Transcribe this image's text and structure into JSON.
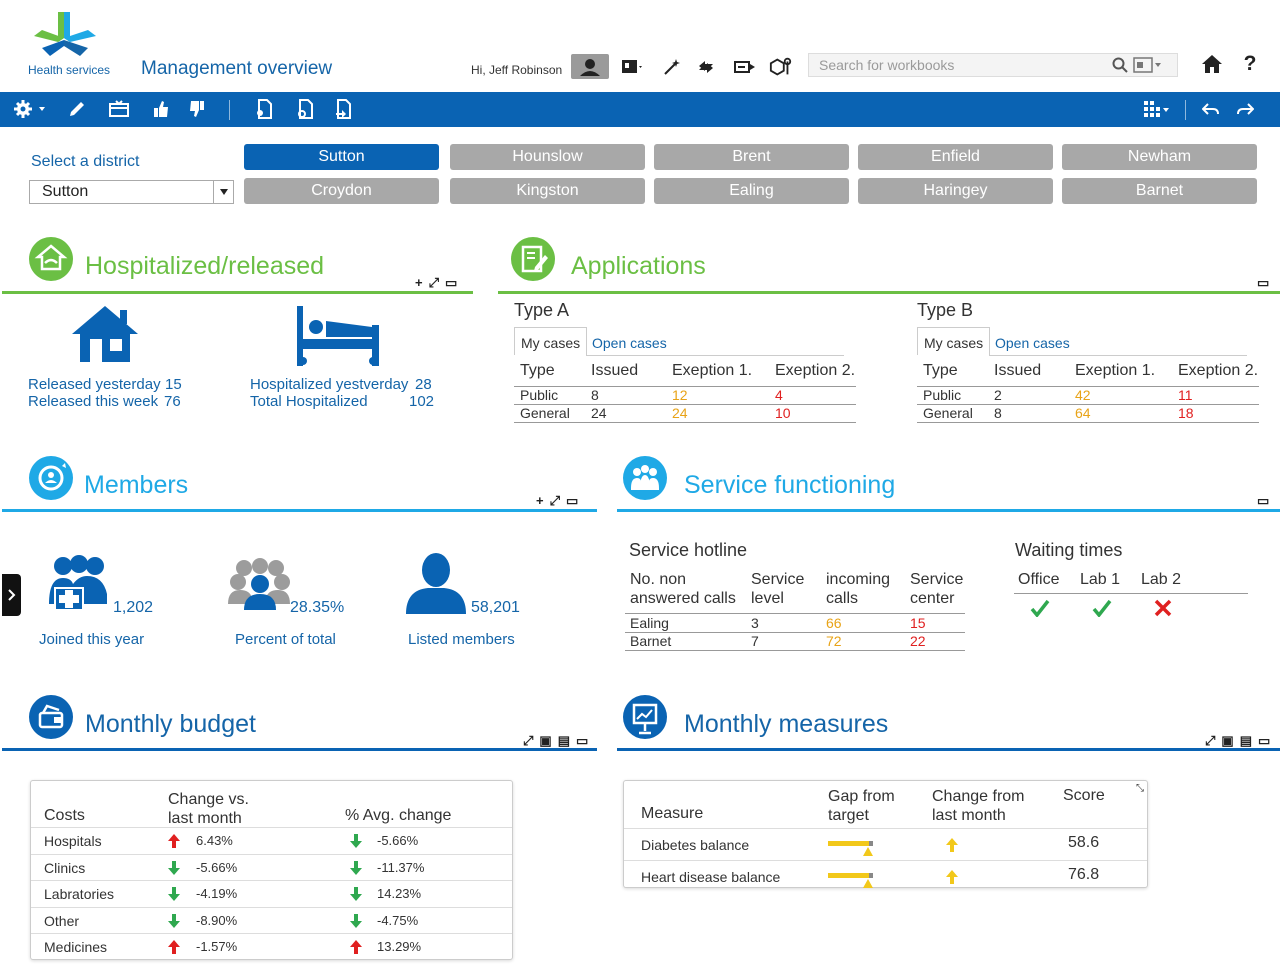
{
  "header": {
    "logo_text": "Health services",
    "app_title": "Management overview",
    "greeting": "Hi, Jeff Robinson",
    "search_placeholder": "Search for workbooks"
  },
  "district": {
    "label": "Select a district",
    "selected": "Sutton",
    "buttons": [
      "Sutton",
      "Hounslow",
      "Brent",
      "Enfield",
      "Newham",
      "Croydon",
      "Kingston",
      "Ealing",
      "Haringey",
      "Barnet"
    ]
  },
  "hospitalized": {
    "title": "Hospitalized/released",
    "released_yesterday_label": "Released yesterday",
    "released_yesterday_value": "15",
    "released_week_label": "Released this week",
    "released_week_value": "76",
    "hosp_yesterday_label": "Hospitalized yestverday",
    "hosp_yesterday_value": "28",
    "total_hosp_label": "Total Hospitalized",
    "total_hosp_value": "102"
  },
  "applications": {
    "title": "Applications",
    "blocks": [
      {
        "name": "Type A",
        "tab_active": "My cases",
        "tab_other": "Open cases",
        "headers": [
          "Type",
          "Issued",
          "Exeption 1.",
          "Exeption 2."
        ],
        "rows": [
          [
            "Public",
            "8",
            "12",
            "4"
          ],
          [
            "General",
            "24",
            "24",
            "10"
          ]
        ]
      },
      {
        "name": "Type B",
        "tab_active": "My cases",
        "tab_other": "Open cases",
        "headers": [
          "Type",
          "Issued",
          "Exeption 1.",
          "Exeption 2."
        ],
        "rows": [
          [
            "Public",
            "2",
            "42",
            "11"
          ],
          [
            "General",
            "8",
            "64",
            "18"
          ]
        ]
      }
    ]
  },
  "members": {
    "title": "Members",
    "joined_value": "1,202",
    "joined_label": "Joined this year",
    "percent_value": "28.35%",
    "percent_label": "Percent of total",
    "listed_value": "58,201",
    "listed_label": "Listed members"
  },
  "service": {
    "title": "Service functioning",
    "hotline_title": "Service hotline",
    "headers": [
      "No. non answered calls",
      "Service level",
      "incoming calls",
      "Service center"
    ],
    "rows": [
      [
        "Ealing",
        "3",
        "66",
        "15"
      ],
      [
        "Barnet",
        "7",
        "72",
        "22"
      ]
    ],
    "waiting_title": "Waiting times",
    "waiting": [
      {
        "label": "Office",
        "status": "ok"
      },
      {
        "label": "Lab 1",
        "status": "ok"
      },
      {
        "label": "Lab 2",
        "status": "fail"
      }
    ]
  },
  "budget": {
    "title": "Monthly budget",
    "col_costs": "Costs",
    "col_change": "Change  vs. last month",
    "col_avg": "% Avg. change",
    "rows": [
      {
        "name": "Hospitals",
        "change": "6.43%",
        "change_dir": "up",
        "avg": "-5.66%",
        "avg_dir": "down"
      },
      {
        "name": "Clinics",
        "change": "-5.66%",
        "change_dir": "down",
        "avg": "-11.37%",
        "avg_dir": "down"
      },
      {
        "name": "Labratories",
        "change": "-4.19%",
        "change_dir": "down",
        "avg": "14.23%",
        "avg_dir": "down"
      },
      {
        "name": "Other",
        "change": "-8.90%",
        "change_dir": "down",
        "avg": "-4.75%",
        "avg_dir": "down"
      },
      {
        "name": "Medicines",
        "change": "-1.57%",
        "change_dir": "up",
        "avg": "13.29%",
        "avg_dir": "up"
      }
    ]
  },
  "measures": {
    "title": "Monthly measures",
    "col_measure": "Measure",
    "col_gap": "Gap from target",
    "col_change": "Change from last month",
    "col_score": "Score",
    "rows": [
      {
        "name": "Diabetes balance",
        "score": "58.6",
        "gap_fraction": 0.85,
        "change_dir": "up"
      },
      {
        "name": "Heart disease balance",
        "score": "76.8",
        "gap_fraction": 0.85,
        "change_dir": "up"
      }
    ]
  },
  "colors": {
    "brand_blue": "#0a63b3",
    "green": "#6bbf44",
    "cyan": "#1fa9e6",
    "orange": "#e8a317",
    "red": "#e02020",
    "button_gray": "#a8a8a8"
  }
}
